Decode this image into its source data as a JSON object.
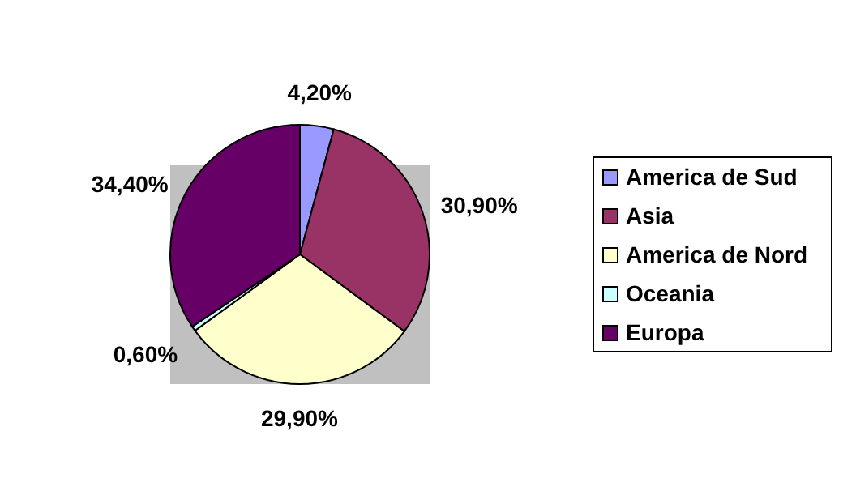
{
  "chart_data": {
    "type": "pie",
    "categories": [
      "America de Sud",
      "Asia",
      "America de Nord",
      "Oceania",
      "Europa"
    ],
    "values": [
      4.2,
      30.9,
      29.9,
      0.6,
      34.4
    ],
    "colors": [
      "#9999ff",
      "#993366",
      "#ffffcc",
      "#ccffff",
      "#660066"
    ],
    "value_labels": [
      "4,20%",
      "30,90%",
      "29,90%",
      "0,60%",
      "34,40%"
    ],
    "legend": "right"
  }
}
